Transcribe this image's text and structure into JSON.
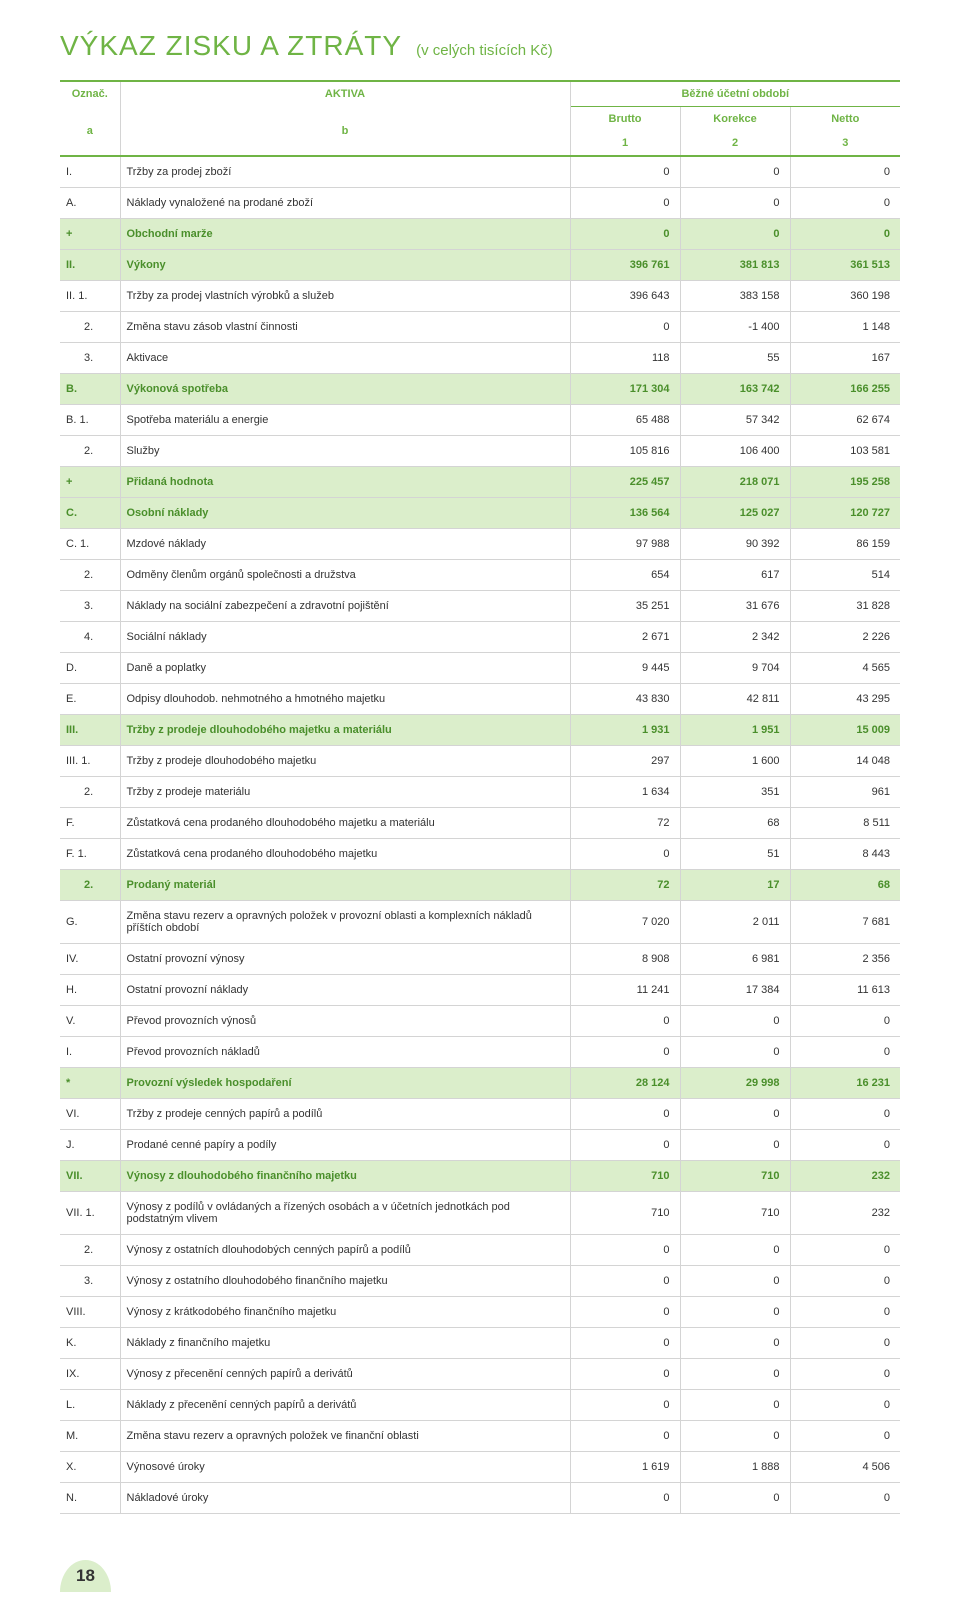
{
  "title": "VÝKAZ ZISKU A ZTRÁTY",
  "subtitle": "(v celých tisících Kč)",
  "header": {
    "oz": "Označ.",
    "a": "a",
    "akt": "AKTIVA",
    "b": "b",
    "period": "Běžné účetní období",
    "brutto": "Brutto",
    "korekce": "Korekce",
    "netto": "Netto",
    "c1": "1",
    "c2": "2",
    "c3": "3"
  },
  "rows": [
    {
      "a": "I.",
      "b": "Tržby za prodej zboží",
      "v1": "0",
      "v2": "0",
      "v3": "0",
      "hl": false,
      "ind": 0
    },
    {
      "a": "A.",
      "b": "Náklady vynaložené na prodané zboží",
      "v1": "0",
      "v2": "0",
      "v3": "0",
      "hl": false,
      "ind": 0
    },
    {
      "a": "+",
      "b": "Obchodní marže",
      "v1": "0",
      "v2": "0",
      "v3": "0",
      "hl": true,
      "ind": 0
    },
    {
      "a": "II.",
      "b": "Výkony",
      "v1": "396 761",
      "v2": "381 813",
      "v3": "361 513",
      "hl": true,
      "ind": 0
    },
    {
      "a": "II. 1.",
      "b": "Tržby za prodej vlastních výrobků a služeb",
      "v1": "396 643",
      "v2": "383 158",
      "v3": "360 198",
      "hl": false,
      "ind": 0
    },
    {
      "a": "2.",
      "b": "Změna stavu zásob vlastní činnosti",
      "v1": "0",
      "v2": "-1 400",
      "v3": "1 148",
      "hl": false,
      "ind": 1
    },
    {
      "a": "3.",
      "b": "Aktivace",
      "v1": "118",
      "v2": "55",
      "v3": "167",
      "hl": false,
      "ind": 1
    },
    {
      "a": "B.",
      "b": "Výkonová spotřeba",
      "v1": "171 304",
      "v2": "163 742",
      "v3": "166 255",
      "hl": true,
      "ind": 0
    },
    {
      "a": "B. 1.",
      "b": "Spotřeba materiálu a energie",
      "v1": "65 488",
      "v2": "57 342",
      "v3": "62 674",
      "hl": false,
      "ind": 0
    },
    {
      "a": "2.",
      "b": "Služby",
      "v1": "105 816",
      "v2": "106 400",
      "v3": "103 581",
      "hl": false,
      "ind": 1
    },
    {
      "a": "+",
      "b": "Přidaná hodnota",
      "v1": "225 457",
      "v2": "218 071",
      "v3": "195 258",
      "hl": true,
      "ind": 0
    },
    {
      "a": "C.",
      "b": "Osobní náklady",
      "v1": "136 564",
      "v2": "125 027",
      "v3": "120 727",
      "hl": true,
      "ind": 0
    },
    {
      "a": "C. 1.",
      "b": "Mzdové náklady",
      "v1": "97 988",
      "v2": "90 392",
      "v3": "86 159",
      "hl": false,
      "ind": 0
    },
    {
      "a": "2.",
      "b": "Odměny členům orgánů společnosti a družstva",
      "v1": "654",
      "v2": "617",
      "v3": "514",
      "hl": false,
      "ind": 1
    },
    {
      "a": "3.",
      "b": "Náklady na sociální zabezpečení a zdravotní pojištění",
      "v1": "35 251",
      "v2": "31 676",
      "v3": "31 828",
      "hl": false,
      "ind": 1
    },
    {
      "a": "4.",
      "b": "Sociální náklady",
      "v1": "2 671",
      "v2": "2 342",
      "v3": "2 226",
      "hl": false,
      "ind": 1
    },
    {
      "a": "D.",
      "b": "Daně a poplatky",
      "v1": "9 445",
      "v2": "9 704",
      "v3": "4 565",
      "hl": false,
      "ind": 0
    },
    {
      "a": "E.",
      "b": "Odpisy dlouhodob. nehmotného a hmotného majetku",
      "v1": "43 830",
      "v2": "42 811",
      "v3": "43 295",
      "hl": false,
      "ind": 0
    },
    {
      "a": "III.",
      "b": "Tržby z prodeje dlouhodobého majetku a materiálu",
      "v1": "1 931",
      "v2": "1 951",
      "v3": "15 009",
      "hl": true,
      "ind": 0
    },
    {
      "a": "III. 1.",
      "b": "Tržby z prodeje dlouhodobého majetku",
      "v1": "297",
      "v2": "1 600",
      "v3": "14 048",
      "hl": false,
      "ind": 0
    },
    {
      "a": "2.",
      "b": "Tržby z prodeje materiálu",
      "v1": "1 634",
      "v2": "351",
      "v3": "961",
      "hl": false,
      "ind": 1
    },
    {
      "a": "F.",
      "b": "Zůstatková cena prodaného dlouhodobého majetku a materiálu",
      "v1": "72",
      "v2": "68",
      "v3": "8 511",
      "hl": false,
      "ind": 0
    },
    {
      "a": "F.  1.",
      "b": "Zůstatková cena prodaného dlouhodobého majetku",
      "v1": "0",
      "v2": "51",
      "v3": "8 443",
      "hl": false,
      "ind": 0
    },
    {
      "a": "2.",
      "b": "Prodaný materiál",
      "v1": "72",
      "v2": "17",
      "v3": "68",
      "hl": true,
      "ind": 1
    },
    {
      "a": "G.",
      "b": "Změna stavu rezerv a opravných položek v provozní oblasti a komplexních nákladů příštích období",
      "v1": "7 020",
      "v2": "2 011",
      "v3": "7 681",
      "hl": false,
      "ind": 0
    },
    {
      "a": "IV.",
      "b": "Ostatní provozní výnosy",
      "v1": "8 908",
      "v2": "6 981",
      "v3": "2 356",
      "hl": false,
      "ind": 0
    },
    {
      "a": "H.",
      "b": "Ostatní provozní náklady",
      "v1": "11 241",
      "v2": "17 384",
      "v3": "11 613",
      "hl": false,
      "ind": 0
    },
    {
      "a": "V.",
      "b": "Převod provozních výnosů",
      "v1": "0",
      "v2": "0",
      "v3": "0",
      "hl": false,
      "ind": 0
    },
    {
      "a": "I.",
      "b": "Převod provozních nákladů",
      "v1": "0",
      "v2": "0",
      "v3": "0",
      "hl": false,
      "ind": 0
    },
    {
      "a": "*",
      "b": "Provozní výsledek hospodaření",
      "v1": "28 124",
      "v2": "29 998",
      "v3": "16 231",
      "hl": true,
      "ind": 0
    },
    {
      "a": "VI.",
      "b": "Tržby z prodeje cenných papírů a podílů",
      "v1": "0",
      "v2": "0",
      "v3": "0",
      "hl": false,
      "ind": 0
    },
    {
      "a": "J.",
      "b": "Prodané cenné papíry a podíly",
      "v1": "0",
      "v2": "0",
      "v3": "0",
      "hl": false,
      "ind": 0
    },
    {
      "a": "VII.",
      "b": "Výnosy z dlouhodobého finančního majetku",
      "v1": "710",
      "v2": "710",
      "v3": "232",
      "hl": true,
      "ind": 0
    },
    {
      "a": "VII. 1.",
      "b": "Výnosy z podílů v ovládaných a řízených osobách a v účetních jednotkách pod podstatným vlivem",
      "v1": "710",
      "v2": "710",
      "v3": "232",
      "hl": false,
      "ind": 0
    },
    {
      "a": "2.",
      "b": "Výnosy z ostatních dlouhodobých cenných papírů a podílů",
      "v1": "0",
      "v2": "0",
      "v3": "0",
      "hl": false,
      "ind": 1
    },
    {
      "a": "3.",
      "b": "Výnosy z ostatního dlouhodobého finančního majetku",
      "v1": "0",
      "v2": "0",
      "v3": "0",
      "hl": false,
      "ind": 1
    },
    {
      "a": "VIII.",
      "b": "Výnosy z krátkodobého finančního majetku",
      "v1": "0",
      "v2": "0",
      "v3": "0",
      "hl": false,
      "ind": 0
    },
    {
      "a": "K.",
      "b": "Náklady z finančního majetku",
      "v1": "0",
      "v2": "0",
      "v3": "0",
      "hl": false,
      "ind": 0
    },
    {
      "a": "IX.",
      "b": "Výnosy z přecenění cenných papírů a derivátů",
      "v1": "0",
      "v2": "0",
      "v3": "0",
      "hl": false,
      "ind": 0
    },
    {
      "a": "L.",
      "b": "Náklady z přecenění cenných papírů a derivátů",
      "v1": "0",
      "v2": "0",
      "v3": "0",
      "hl": false,
      "ind": 0
    },
    {
      "a": "M.",
      "b": "Změna stavu rezerv a  opravných položek ve finanční  oblasti",
      "v1": "0",
      "v2": "0",
      "v3": "0",
      "hl": false,
      "ind": 0
    },
    {
      "a": "X.",
      "b": "Výnosové úroky",
      "v1": "1 619",
      "v2": "1 888",
      "v3": "4 506",
      "hl": false,
      "ind": 0
    },
    {
      "a": "N.",
      "b": "Nákladové úroky",
      "v1": "0",
      "v2": "0",
      "v3": "0",
      "hl": false,
      "ind": 0
    }
  ],
  "page_number": "18",
  "colors": {
    "accent": "#6fb445",
    "highlight_bg": "#dbeecb",
    "highlight_text": "#4a8f2b",
    "border": "#d4d4d4",
    "text": "#333333",
    "background": "#ffffff"
  }
}
